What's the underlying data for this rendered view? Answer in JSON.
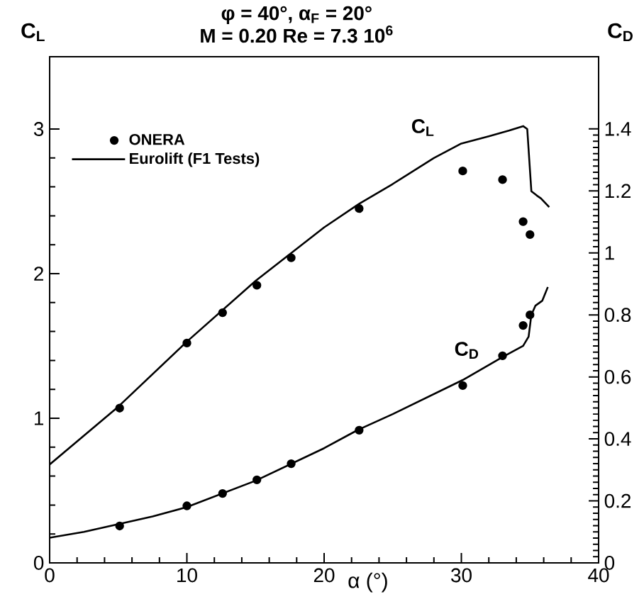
{
  "chart_data": {
    "type": "line",
    "title": "φ  = 40°, α$_{F}$ = 20°",
    "subtitle": "M = 0.20  Re = 7.3 10$^{6}$",
    "xlabel": "α (°)",
    "ylabel": "C$_{L}$",
    "y2label": "C$_{D}$",
    "xlim": [
      0,
      40
    ],
    "xticks": [
      0,
      10,
      20,
      30,
      40
    ],
    "ylim": [
      0,
      3.5
    ],
    "yticks": [
      0,
      1,
      2,
      3
    ],
    "y2lim": [
      0,
      1.633
    ],
    "y2ticks": [
      0,
      0.2,
      0.4,
      0.6,
      0.8,
      1,
      1.2,
      1.4
    ],
    "legend": "top left",
    "line_style": "solid",
    "grid": false,
    "annotations": [
      "C$_{L}$",
      "C$_{D}$"
    ],
    "series": [
      {
        "name": "ONERA",
        "type": "scatter",
        "marker": "circle",
        "color": "#000000",
        "x": [
          5.1,
          10.0,
          12.6,
          15.1,
          17.6,
          22.55,
          30.1,
          33.0,
          34.5,
          35.0
        ],
        "values": [
          1.07,
          1.52,
          1.73,
          1.92,
          2.11,
          2.45,
          2.71,
          2.65,
          2.36,
          2.27
        ]
      },
      {
        "name": "Eurolift (F1 Tests)",
        "marker": "none",
        "color": "#000000",
        "x": [
          0,
          5,
          10,
          15,
          20,
          22.5,
          25,
          28,
          30,
          32,
          33.5,
          34.5,
          34.8,
          35.1,
          35.5,
          35.8,
          36.4
        ],
        "values": [
          0.68,
          1.08,
          1.53,
          1.95,
          2.32,
          2.48,
          2.62,
          2.8,
          2.9,
          2.95,
          2.99,
          3.02,
          3.0,
          2.57,
          2.54,
          2.52,
          2.46
        ]
      },
      {
        "type": "scatter",
        "marker": "circle",
        "axis": "y2",
        "color": "#000000",
        "x": [
          5.1,
          10.0,
          12.6,
          15.1,
          17.6,
          22.55,
          30.1,
          33.0,
          34.5,
          35.0
        ],
        "values": [
          0.119,
          0.184,
          0.224,
          0.268,
          0.32,
          0.428,
          0.572,
          0.668,
          0.766,
          0.8
        ]
      },
      {
        "marker": "none",
        "axis": "y2",
        "color": "#000000",
        "x": [
          0,
          2.5,
          5,
          7.5,
          10,
          15,
          20,
          22.5,
          25,
          30.1,
          33,
          34.5,
          34.9,
          35.1,
          35.4,
          35.9,
          36.3
        ],
        "values": [
          0.081,
          0.1,
          0.125,
          0.15,
          0.18,
          0.265,
          0.37,
          0.43,
          0.48,
          0.59,
          0.664,
          0.7,
          0.73,
          0.8,
          0.83,
          0.846,
          0.89
        ]
      }
    ]
  }
}
